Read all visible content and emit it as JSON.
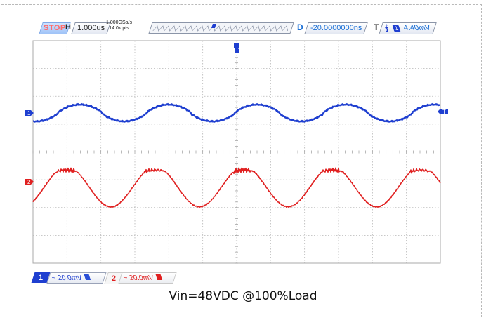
{
  "status": {
    "run_state": "STOP"
  },
  "horizontal": {
    "label": "H",
    "timebase": "1.000us",
    "sample_rate": "1.000GSa/s",
    "points": "14.0k pts"
  },
  "delay": {
    "label": "D",
    "value": "-20.0000000ns"
  },
  "trigger": {
    "label": "T",
    "source": "1",
    "level": "4.40mV"
  },
  "channels": [
    {
      "number": "1",
      "scale": "~ 20.0mV",
      "color": "#1f3fd0"
    },
    {
      "number": "2",
      "scale": "~ 20.0mV",
      "color": "#e02020"
    }
  ],
  "markers": {
    "ch1": "1",
    "ch2": "2",
    "trigger_level": "T"
  },
  "caption": "Vin=48VDC @100%Load",
  "waveforms": {
    "cycles_on_screen": 4.6,
    "ch1_shape": "rounded-sine",
    "ch2_shape": "sine-with-switching-spikes"
  }
}
